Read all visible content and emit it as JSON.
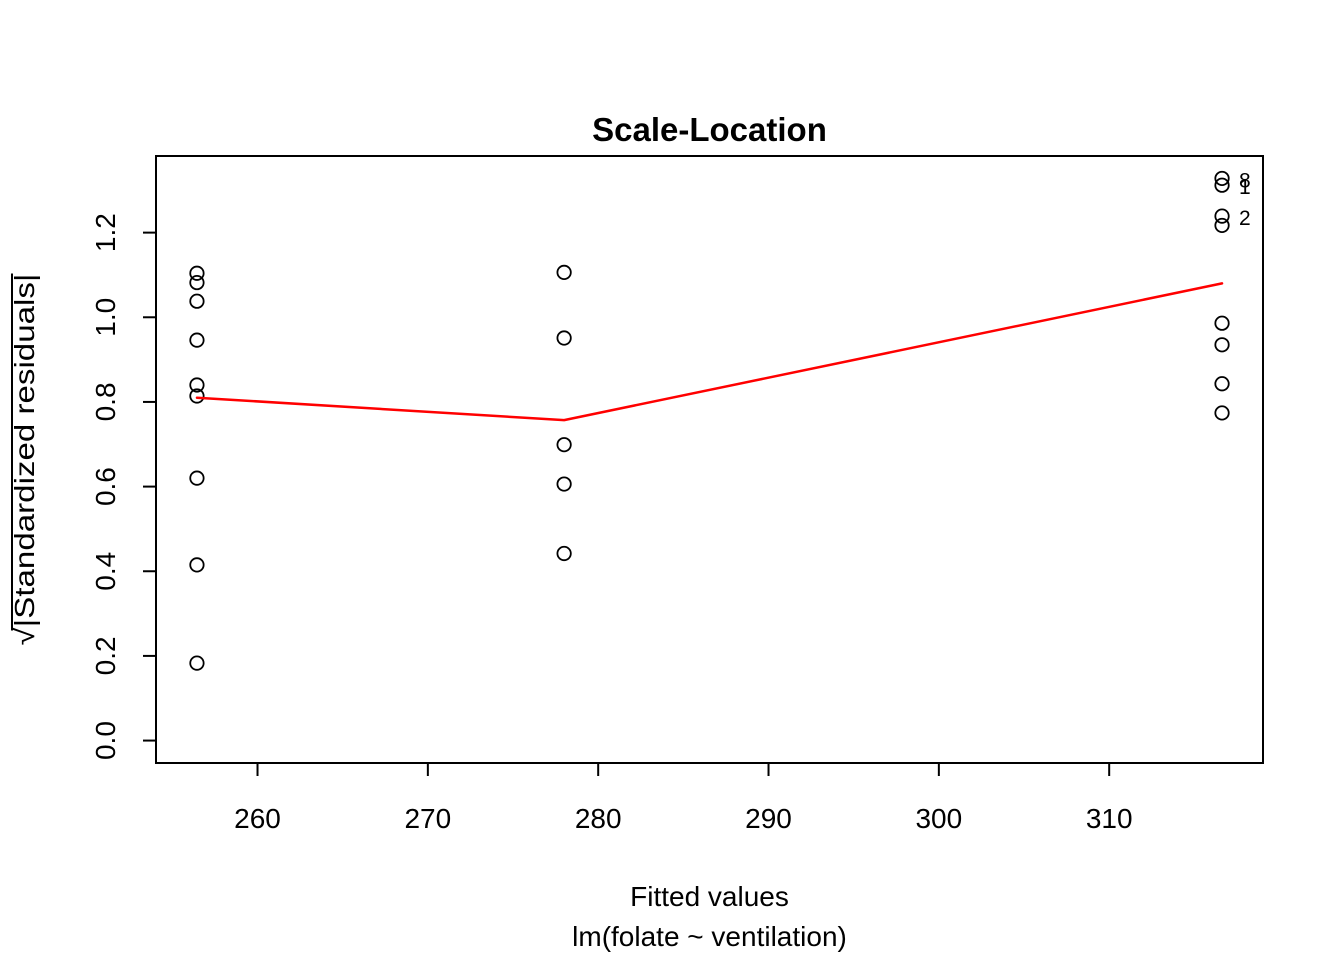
{
  "figure": {
    "background_color": "#ffffff",
    "foreground_color": "#000000"
  },
  "chart_data": {
    "type": "scatter",
    "title": "Scale-Location",
    "xlabel": "Fitted values",
    "xlabel_sub": "lm(folate ~ ventilation)",
    "ylabel": "√|Standardized residuals|",
    "xlim": [
      254.04,
      319.03
    ],
    "ylim": [
      -0.053,
      1.381
    ],
    "x_ticks": [
      260,
      270,
      280,
      290,
      300,
      310
    ],
    "y_tick_labels": [
      "0.0",
      "0.2",
      "0.4",
      "0.6",
      "0.8",
      "1.0",
      "1.2"
    ],
    "grid": false,
    "legend": null,
    "point_style": {
      "shape": "open-circle",
      "color": "#000000"
    },
    "series": [
      {
        "fitted": 256.444,
        "sqrt_abs_std_residuals": [
          1.104,
          1.082,
          1.038,
          0.946,
          0.84,
          0.814,
          0.62,
          0.415,
          0.183
        ]
      },
      {
        "fitted": 278.0,
        "sqrt_abs_std_residuals": [
          1.106,
          0.951,
          0.699,
          0.606,
          0.442
        ]
      },
      {
        "fitted": 316.625,
        "sqrt_abs_std_residuals": [
          1.328,
          1.312,
          1.239,
          1.217,
          0.986,
          0.935,
          0.843,
          0.774
        ]
      }
    ],
    "smooth_line": {
      "color": "#ff0000",
      "points": [
        [
          256.444,
          0.81
        ],
        [
          278.0,
          0.757
        ],
        [
          316.625,
          1.08
        ]
      ]
    },
    "labeled_points": [
      {
        "label": "8",
        "x": 316.625,
        "y": 1.328
      },
      {
        "label": "1",
        "x": 316.625,
        "y": 1.312
      },
      {
        "label": "2",
        "x": 316.625,
        "y": 1.239
      }
    ]
  }
}
